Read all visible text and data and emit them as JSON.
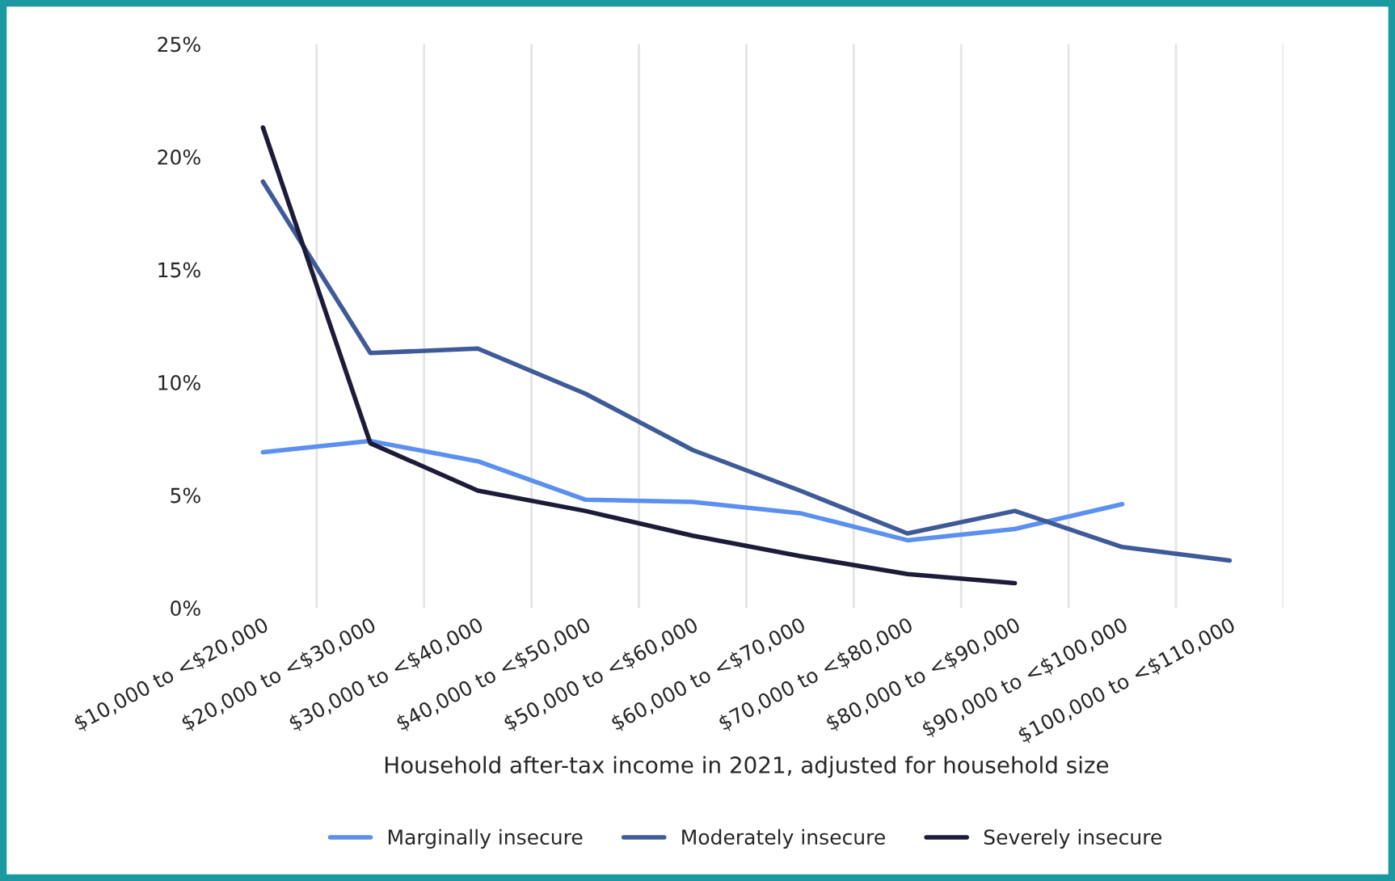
{
  "chart_data": {
    "type": "line",
    "xlabel": "Household after-tax income in 2021, adjusted for household size",
    "categories": [
      "$10,000 to <$20,000",
      "$20,000 to <$30,000",
      "$30,000 to <$40,000",
      "$40,000 to <$50,000",
      "$50,000 to <$60,000",
      "$60,000 to <$70,000",
      "$70,000 to <$80,000",
      "$80,000 to <$90,000",
      "$90,000 to <$100,000",
      "$100,000 to <$110,000"
    ],
    "series": [
      {
        "name": "Marginally insecure",
        "color": "#5b8ff0",
        "values": [
          6.9,
          7.4,
          6.5,
          4.8,
          4.7,
          4.2,
          3.0,
          3.5,
          4.6,
          null
        ]
      },
      {
        "name": "Moderately insecure",
        "color": "#3f5a98",
        "values": [
          18.9,
          11.3,
          11.5,
          9.5,
          7.0,
          5.2,
          3.3,
          4.3,
          2.7,
          2.1
        ]
      },
      {
        "name": "Severely insecure",
        "color": "#1c1c3a",
        "values": [
          21.3,
          7.3,
          5.2,
          4.3,
          3.2,
          2.3,
          1.5,
          1.1,
          null,
          null
        ]
      }
    ],
    "ylim": [
      0,
      25
    ],
    "yticks": [
      {
        "value": 0,
        "label": "0%"
      },
      {
        "value": 5,
        "label": "5%"
      },
      {
        "value": 10,
        "label": "10%"
      },
      {
        "value": 15,
        "label": "15%"
      },
      {
        "value": 20,
        "label": "20%"
      },
      {
        "value": 25,
        "label": "25%"
      }
    ],
    "grid": "x",
    "legend": "bottom",
    "marker": "none",
    "line_style": "solid"
  }
}
